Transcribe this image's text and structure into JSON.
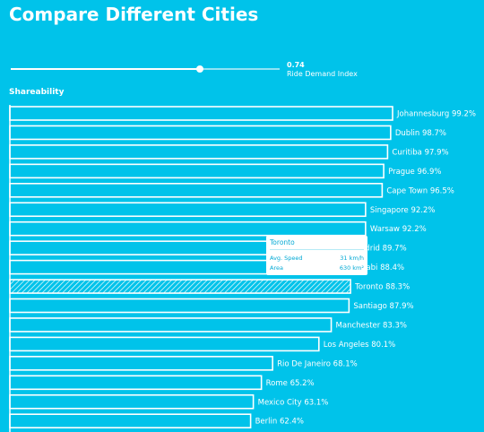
{
  "header": {
    "title": "Compare Different Cities"
  },
  "slider": {
    "value": 0.74,
    "value_text": "0.74",
    "label": "Ride Demand Index"
  },
  "section": {
    "label": "Shareability"
  },
  "tooltip": {
    "city": "Toronto",
    "rows": [
      {
        "label": "Avg. Speed",
        "value": "31 km/h"
      },
      {
        "label": "Area",
        "value": "630 km²"
      }
    ]
  },
  "colors": {
    "background": "#00c3ea",
    "bar_outline": "#ffffff",
    "tooltip_text": "#00a9d4"
  },
  "chart_data": {
    "type": "bar",
    "orientation": "horizontal",
    "highlighted": "Toronto",
    "xlim": [
      0,
      100
    ],
    "categories": [
      "Johannesburg",
      "Dublin",
      "Curitiba",
      "Prague",
      "Cape Town",
      "Singapore",
      "Warsaw",
      "Madrid",
      "Abu Dhabi",
      "Toronto",
      "Santiago",
      "Manchester",
      "Los Angeles",
      "Rio De Janeiro",
      "Rome",
      "Mexico City",
      "Berlin"
    ],
    "values": [
      99.2,
      98.7,
      97.9,
      96.9,
      96.5,
      92.2,
      92.2,
      89.7,
      88.4,
      88.3,
      87.9,
      83.3,
      80.1,
      68.1,
      65.2,
      63.1,
      62.4
    ],
    "labels": [
      "Johannesburg 99.2%",
      "Dublin 98.7%",
      "Curitiba 97.9%",
      "Prague 96.9%",
      "Cape Town 96.5%",
      "Singapore 92.2%",
      "Warsaw 92.2%",
      "adrid 89.7%",
      "Dhabi 88.4%",
      "Toronto 88.3%",
      "Santiago 87.9%",
      "Manchester 83.3%",
      "Los Angeles 80.1%",
      "Rio De Janeiro 68.1%",
      "Rome 65.2%",
      "Mexico City 63.1%",
      "Berlin 62.4%"
    ]
  }
}
